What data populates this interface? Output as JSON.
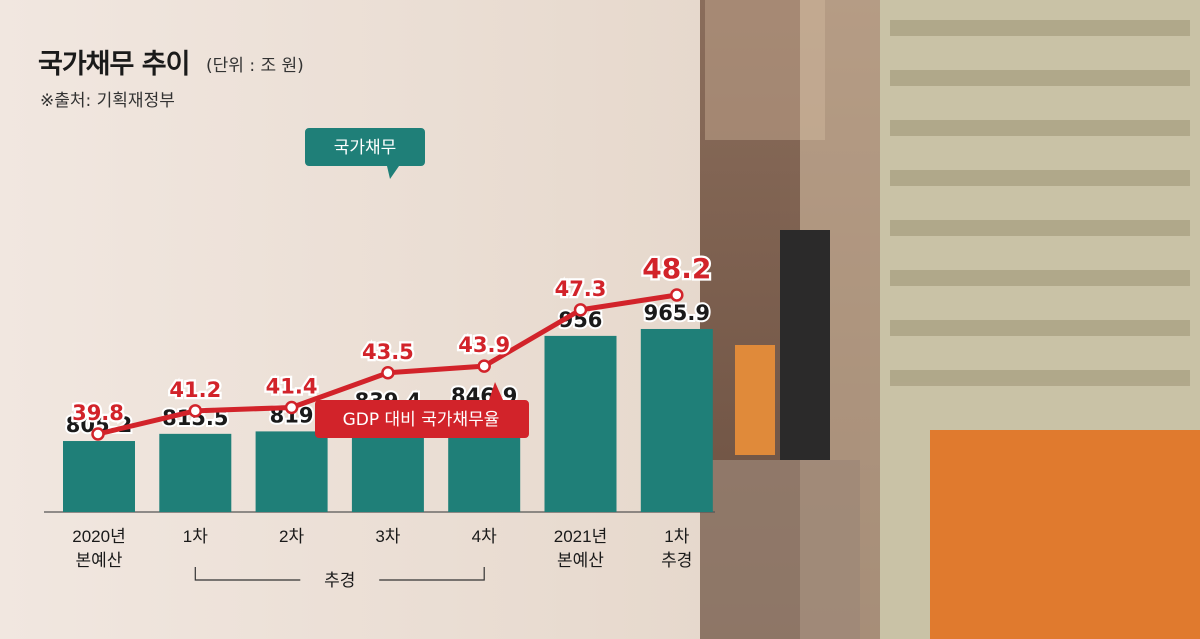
{
  "header": {
    "title": "국가채무 추이",
    "unit": "(단위 : 조 원)",
    "source": "※출처: 기획재정부"
  },
  "colors": {
    "bar": "#1f7f78",
    "line": "#d2232a",
    "text": "#1a1a1a"
  },
  "chart_data": {
    "type": "bar",
    "title": "국가채무 추이",
    "categories": [
      [
        "2020년",
        "본예산"
      ],
      [
        "1차"
      ],
      [
        "2차"
      ],
      [
        "3차"
      ],
      [
        "4차"
      ],
      [
        "2021년",
        "본예산"
      ],
      [
        "1차",
        "추경"
      ]
    ],
    "group_label": "추경",
    "series": [
      {
        "name": "국가채무",
        "type": "bar",
        "values": [
          805.2,
          815.5,
          819,
          839.4,
          846.9,
          956,
          965.9
        ],
        "labels": [
          "805.2",
          "815.5",
          "819",
          "839.4",
          "846.9",
          "956",
          "965.9"
        ]
      },
      {
        "name": "GDP 대비 국가채무율",
        "type": "line",
        "values": [
          39.8,
          41.2,
          41.4,
          43.5,
          43.9,
          47.3,
          48.2
        ],
        "labels": [
          "39.8",
          "41.2",
          "41.4",
          "43.5",
          "43.9",
          "47.3",
          "48.2"
        ]
      }
    ]
  }
}
